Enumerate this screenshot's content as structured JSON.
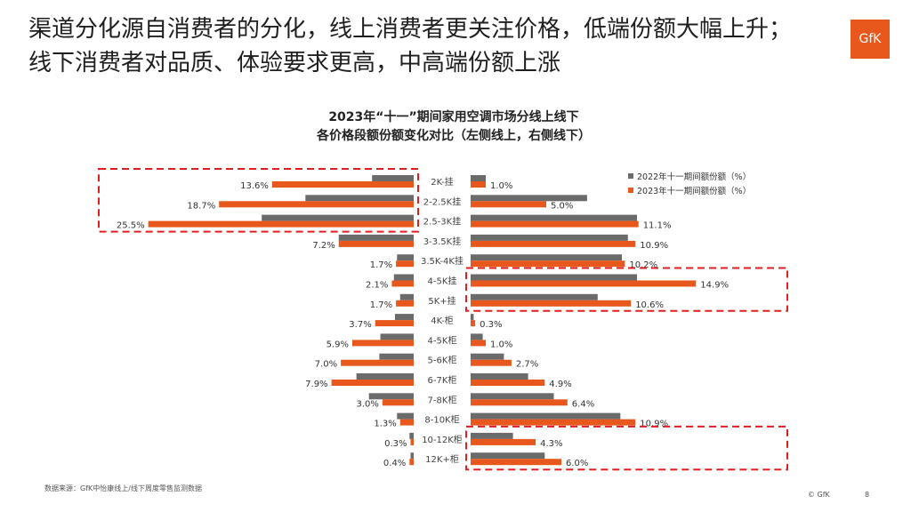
{
  "slide": {
    "title": "渠道分化源自消费者的分化，线上消费者更关注价格，低端份额大幅上升；线下消费者对品质、体验要求更高，中高端份额上涨",
    "logo_text": "GfK",
    "source": "数据来源：GfK中怡康线上/线下周度零售监测数据",
    "copyright": "© GfK",
    "page_number": "8"
  },
  "colors": {
    "series_2022": "#6b6b6b",
    "series_2023": "#e8581c",
    "highlight_box": "#e02020",
    "logo": "#e8581c"
  },
  "chart_data": {
    "type": "bar",
    "orientation": "horizontal-butterfly",
    "title_lines": [
      "2023年“十一”期间家用空调市场分线上线下",
      "各价格段额份额变化对比（左侧线上，右侧线下）"
    ],
    "categories": [
      "2K-挂",
      "2-2.5K挂",
      "2.5-3K挂",
      "3-3.5K挂",
      "3.5K-4K挂",
      "4-5K挂",
      "5K+挂",
      "4K-柜",
      "4-5K柜",
      "5-6K柜",
      "6-7K柜",
      "7-8K柜",
      "8-10K柜",
      "10-12K柜",
      "12K+柜"
    ],
    "legend": [
      "2022年十一期间额份额（%）",
      "2023年十一期间额份额（%）"
    ],
    "legend_position": "top-right",
    "online": {
      "series": [
        {
          "name": "2022年十一期间额份额（%）",
          "values": [
            4.0,
            10.4,
            14.6,
            7.2,
            1.6,
            1.9,
            1.3,
            1.8,
            3.2,
            3.3,
            5.5,
            4.3,
            1.6,
            0.4,
            0.3
          ]
        },
        {
          "name": "2023年十一期间额份额（%）",
          "values": [
            13.6,
            18.7,
            25.5,
            7.2,
            1.7,
            2.1,
            1.7,
            3.7,
            5.9,
            7.0,
            7.9,
            3.0,
            1.3,
            0.3,
            0.4
          ]
        }
      ],
      "data_labels": [
        "13.6%",
        "18.7%",
        "25.5%",
        "7.2%",
        "1.7%",
        "2.1%",
        "1.7%",
        "3.7%",
        "5.9%",
        "7.0%",
        "7.9%",
        "3.0%",
        "1.3%",
        "0.3%",
        "0.4%"
      ]
    },
    "offline": {
      "series": [
        {
          "name": "2022年十一期间额份额（%）",
          "values": [
            1.0,
            7.7,
            11.0,
            10.4,
            10.0,
            11.0,
            8.4,
            0.2,
            0.8,
            2.2,
            3.8,
            5.5,
            9.9,
            2.8,
            4.9
          ]
        },
        {
          "name": "2023年十一期间额份额（%）",
          "values": [
            1.0,
            5.0,
            11.1,
            10.9,
            10.2,
            14.9,
            10.6,
            0.3,
            1.0,
            2.7,
            4.9,
            6.4,
            10.9,
            4.3,
            6.0
          ]
        }
      ],
      "data_labels": [
        "1.0%",
        "5.0%",
        "11.1%",
        "10.9%",
        "10.2%",
        "14.9%",
        "10.6%",
        "0.3%",
        "1.0%",
        "2.7%",
        "4.9%",
        "6.4%",
        "10.9%",
        "4.3%",
        "6.0%"
      ]
    },
    "highlights": [
      {
        "side": "online",
        "categories": [
          "2K-挂",
          "2-2.5K挂",
          "2.5-3K挂"
        ]
      },
      {
        "side": "offline",
        "categories": [
          "4-5K挂",
          "5K+挂"
        ]
      },
      {
        "side": "offline",
        "categories": [
          "10-12K柜",
          "12K+柜"
        ]
      }
    ]
  }
}
